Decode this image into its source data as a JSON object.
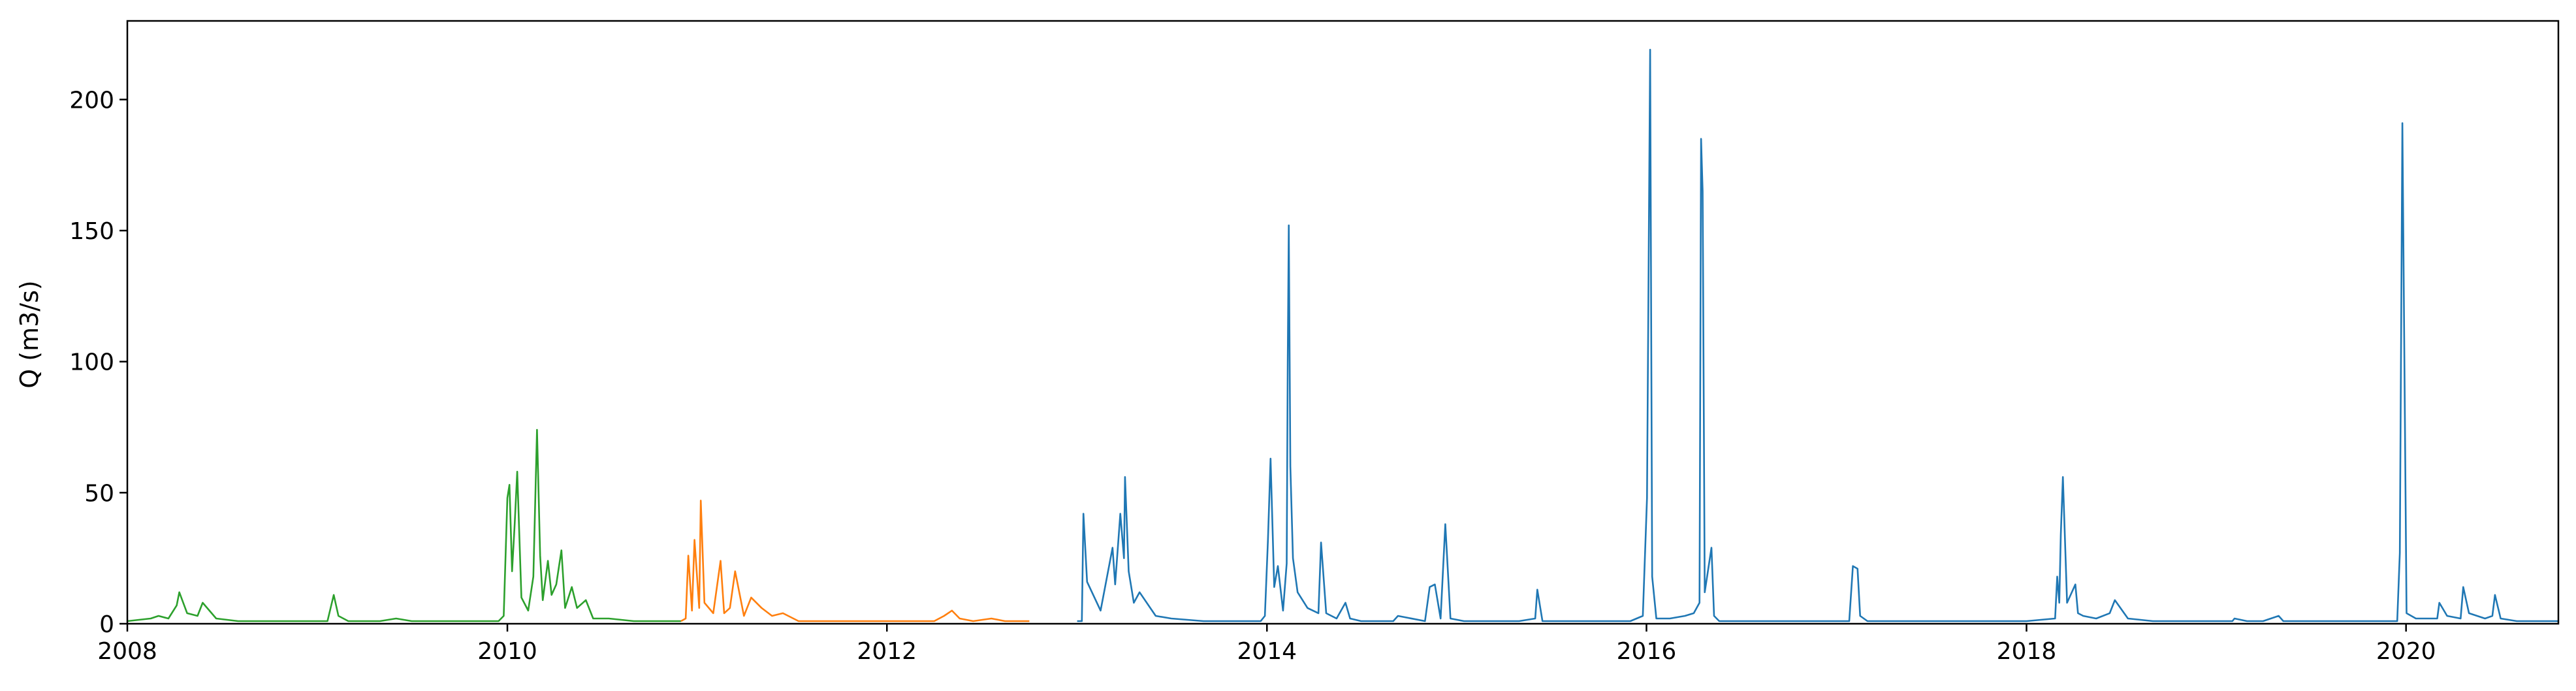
{
  "chart_data": {
    "type": "line",
    "title": "",
    "xlabel": "",
    "ylabel": "Q (m3/s)",
    "xlim": [
      "2008-01-01",
      "2020-10-20"
    ],
    "ylim": [
      0,
      230
    ],
    "x_ticks": [
      "2008",
      "2010",
      "2012",
      "2014",
      "2016",
      "2018",
      "2020"
    ],
    "y_ticks": [
      "0",
      "50",
      "100",
      "150",
      "200"
    ],
    "grid": false,
    "legend": "none",
    "colors": [
      "#2ca02c",
      "#ff7f0e",
      "#1f77b4"
    ],
    "series": [
      {
        "color": "#2ca02c",
        "x": [
          "2008-01-01",
          "2008-02-15",
          "2008-03-01",
          "2008-03-20",
          "2008-04-05",
          "2008-04-10",
          "2008-04-25",
          "2008-05-15",
          "2008-05-25",
          "2008-06-20",
          "2008-08-01",
          "2008-10-01",
          "2008-12-01",
          "2009-01-20",
          "2009-02-01",
          "2009-02-10",
          "2009-03-01",
          "2009-04-01",
          "2009-05-01",
          "2009-06-01",
          "2009-07-01",
          "2009-09-01",
          "2009-11-01",
          "2009-12-15",
          "2009-12-25",
          "2010-01-01",
          "2010-01-05",
          "2010-01-10",
          "2010-01-15",
          "2010-01-20",
          "2010-01-28",
          "2010-02-10",
          "2010-02-20",
          "2010-02-27",
          "2010-03-05",
          "2010-03-10",
          "2010-03-20",
          "2010-03-27",
          "2010-04-05",
          "2010-04-15",
          "2010-04-22",
          "2010-05-05",
          "2010-05-15",
          "2010-06-01",
          "2010-06-15",
          "2010-07-15",
          "2010-09-01",
          "2010-11-01",
          "2010-12-01"
        ],
        "y": [
          1,
          2,
          3,
          2,
          7,
          12,
          4,
          3,
          8,
          2,
          1,
          1,
          1,
          1,
          11,
          3,
          1,
          1,
          1,
          2,
          1,
          1,
          1,
          1,
          3,
          48,
          53,
          20,
          38,
          58,
          10,
          5,
          18,
          74,
          26,
          9,
          24,
          11,
          15,
          28,
          6,
          14,
          6,
          9,
          2,
          2,
          1,
          1,
          1
        ]
      },
      {
        "color": "#ff7f0e",
        "x": [
          "2010-12-01",
          "2010-12-10",
          "2010-12-15",
          "2010-12-22",
          "2010-12-27",
          "2011-01-05",
          "2011-01-08",
          "2011-01-15",
          "2011-02-01",
          "2011-02-15",
          "2011-02-22",
          "2011-03-05",
          "2011-03-15",
          "2011-04-01",
          "2011-04-15",
          "2011-05-05",
          "2011-05-25",
          "2011-06-15",
          "2011-07-15",
          "2011-09-01",
          "2011-11-01",
          "2012-01-01",
          "2012-03-01",
          "2012-04-01",
          "2012-04-20",
          "2012-05-05",
          "2012-05-20",
          "2012-06-15",
          "2012-07-20",
          "2012-08-15",
          "2012-10-01"
        ],
        "y": [
          1,
          2,
          26,
          5,
          32,
          6,
          47,
          8,
          4,
          24,
          4,
          6,
          20,
          3,
          10,
          6,
          3,
          4,
          1,
          1,
          1,
          1,
          1,
          1,
          3,
          5,
          2,
          1,
          2,
          1,
          1
        ]
      },
      {
        "color": "#1f77b4",
        "x": [
          "2013-01-01",
          "2013-01-10",
          "2013-01-13",
          "2013-01-20",
          "2013-02-15",
          "2013-03-10",
          "2013-03-15",
          "2013-03-25",
          "2013-04-01",
          "2013-04-03",
          "2013-04-10",
          "2013-04-20",
          "2013-05-01",
          "2013-06-01",
          "2013-07-01",
          "2013-09-01",
          "2013-11-01",
          "2013-12-20",
          "2013-12-28",
          "2014-01-03",
          "2014-01-08",
          "2014-01-15",
          "2014-01-22",
          "2014-02-01",
          "2014-02-08",
          "2014-02-10",
          "2014-02-12",
          "2014-02-15",
          "2014-02-20",
          "2014-03-01",
          "2014-03-20",
          "2014-04-10",
          "2014-04-15",
          "2014-04-25",
          "2014-05-15",
          "2014-06-01",
          "2014-06-10",
          "2014-07-01",
          "2014-09-01",
          "2014-09-10",
          "2014-11-01",
          "2014-11-10",
          "2014-11-20",
          "2014-12-01",
          "2014-12-10",
          "2014-12-20",
          "2015-01-15",
          "2015-03-01",
          "2015-05-01",
          "2015-06-01",
          "2015-06-05",
          "2015-06-15",
          "2015-08-01",
          "2015-10-01",
          "2015-12-01",
          "2015-12-25",
          "2016-01-02",
          "2016-01-08",
          "2016-01-12",
          "2016-01-20",
          "2016-02-15",
          "2016-03-15",
          "2016-04-01",
          "2016-04-12",
          "2016-04-15",
          "2016-04-18",
          "2016-04-22",
          "2016-05-05",
          "2016-05-10",
          "2016-05-20",
          "2016-06-15",
          "2016-08-01",
          "2016-10-01",
          "2016-12-01",
          "2017-01-25",
          "2017-02-01",
          "2017-02-10",
          "2017-02-15",
          "2017-03-01",
          "2017-05-01",
          "2017-08-01",
          "2017-11-01",
          "2018-01-01",
          "2018-02-25",
          "2018-03-01",
          "2018-03-05",
          "2018-03-08",
          "2018-03-12",
          "2018-03-20",
          "2018-04-05",
          "2018-04-10",
          "2018-04-20",
          "2018-05-15",
          "2018-06-10",
          "2018-06-20",
          "2018-07-15",
          "2018-09-01",
          "2018-11-01",
          "2019-01-01",
          "2019-02-01",
          "2019-02-05",
          "2019-03-01",
          "2019-04-01",
          "2019-05-01",
          "2019-05-10",
          "2019-06-01",
          "2019-08-01",
          "2019-10-01",
          "2019-11-20",
          "2019-12-15",
          "2019-12-20",
          "2019-12-25",
          "2020-01-02",
          "2020-01-20",
          "2020-02-15",
          "2020-03-01",
          "2020-03-05",
          "2020-03-20",
          "2020-04-15",
          "2020-04-20",
          "2020-05-01",
          "2020-06-01",
          "2020-06-15",
          "2020-06-20",
          "2020-07-01",
          "2020-08-01",
          "2020-10-20"
        ],
        "y": [
          1,
          1,
          42,
          16,
          5,
          29,
          15,
          42,
          25,
          56,
          20,
          8,
          12,
          3,
          2,
          1,
          1,
          1,
          3,
          32,
          63,
          14,
          22,
          5,
          23,
          100,
          152,
          60,
          25,
          12,
          6,
          4,
          31,
          4,
          2,
          8,
          2,
          1,
          1,
          3,
          1,
          14,
          15,
          2,
          38,
          2,
          1,
          1,
          1,
          2,
          13,
          1,
          1,
          1,
          1,
          3,
          48,
          219,
          18,
          2,
          2,
          3,
          4,
          8,
          185,
          165,
          12,
          29,
          3,
          1,
          1,
          1,
          1,
          1,
          1,
          22,
          21,
          3,
          1,
          1,
          1,
          1,
          1,
          2,
          18,
          8,
          34,
          56,
          8,
          15,
          4,
          3,
          2,
          4,
          9,
          2,
          1,
          1,
          1,
          1,
          2,
          1,
          1,
          3,
          1,
          1,
          1,
          1,
          1,
          1,
          27,
          191,
          4,
          2,
          2,
          2,
          8,
          3,
          2,
          14,
          4,
          2,
          3,
          11,
          2,
          1,
          1
        ]
      }
    ]
  }
}
